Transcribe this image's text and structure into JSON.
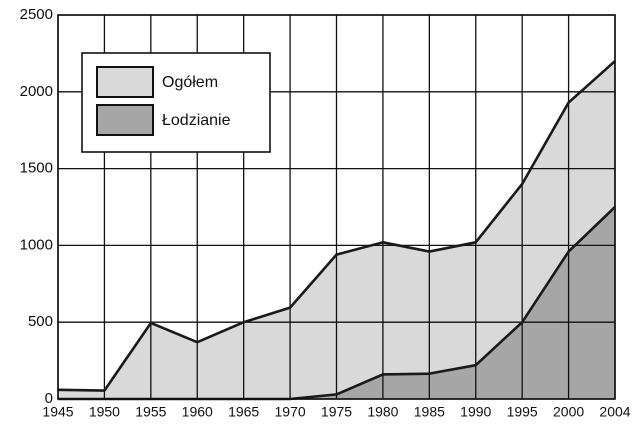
{
  "chart_data": {
    "type": "area",
    "categories": [
      "1945",
      "1950",
      "1955",
      "1960",
      "1965",
      "1970",
      "1975",
      "1980",
      "1985",
      "1990",
      "1995",
      "2000",
      "2004"
    ],
    "series": [
      {
        "name": "Ogółem",
        "color": "#d9d9d9",
        "values": [
          60,
          55,
          495,
          370,
          500,
          595,
          940,
          1020,
          960,
          1020,
          1400,
          1930,
          2200
        ]
      },
      {
        "name": "Łodzianie",
        "color": "#a6a6a6",
        "values": [
          0,
          0,
          0,
          0,
          0,
          0,
          30,
          160,
          165,
          220,
          500,
          960,
          1250
        ]
      }
    ],
    "ylim": [
      0,
      2500
    ],
    "yticks": [
      0,
      500,
      1000,
      1500,
      2000,
      2500
    ],
    "grid": true
  }
}
